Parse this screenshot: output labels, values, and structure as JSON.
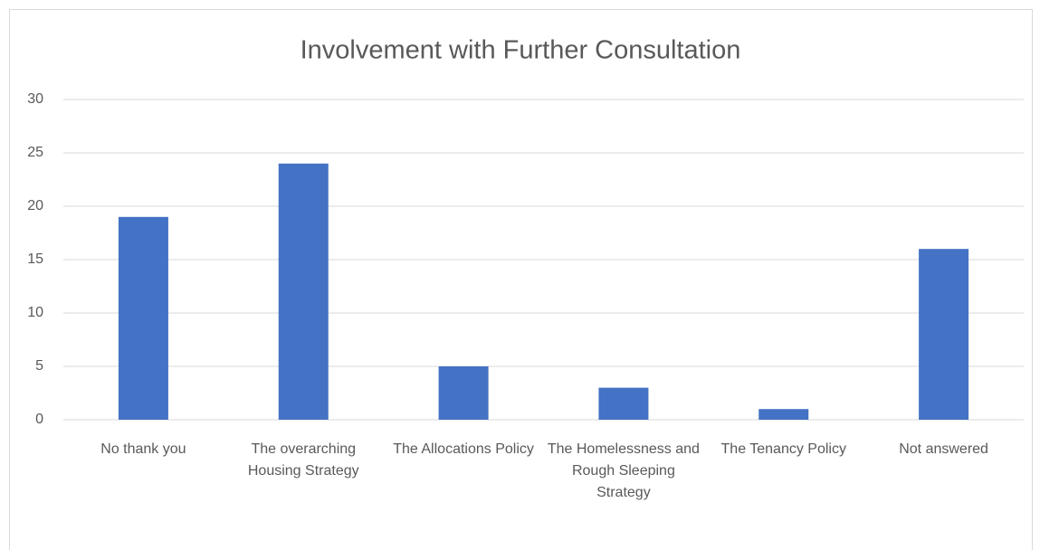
{
  "chart_data": {
    "type": "bar",
    "title": "Involvement with Further Consultation",
    "categories": [
      "No thank you",
      "The overarching Housing Strategy",
      "The Allocations Policy",
      "The Homelessness and Rough Sleeping Strategy",
      "The Tenancy Policy",
      "Not answered"
    ],
    "values": [
      19,
      24,
      5,
      3,
      1,
      16
    ],
    "color": "#4472c4",
    "ylim": [
      0,
      30
    ],
    "yticks": [
      0,
      5,
      10,
      15,
      20,
      25,
      30
    ],
    "grid": true
  }
}
